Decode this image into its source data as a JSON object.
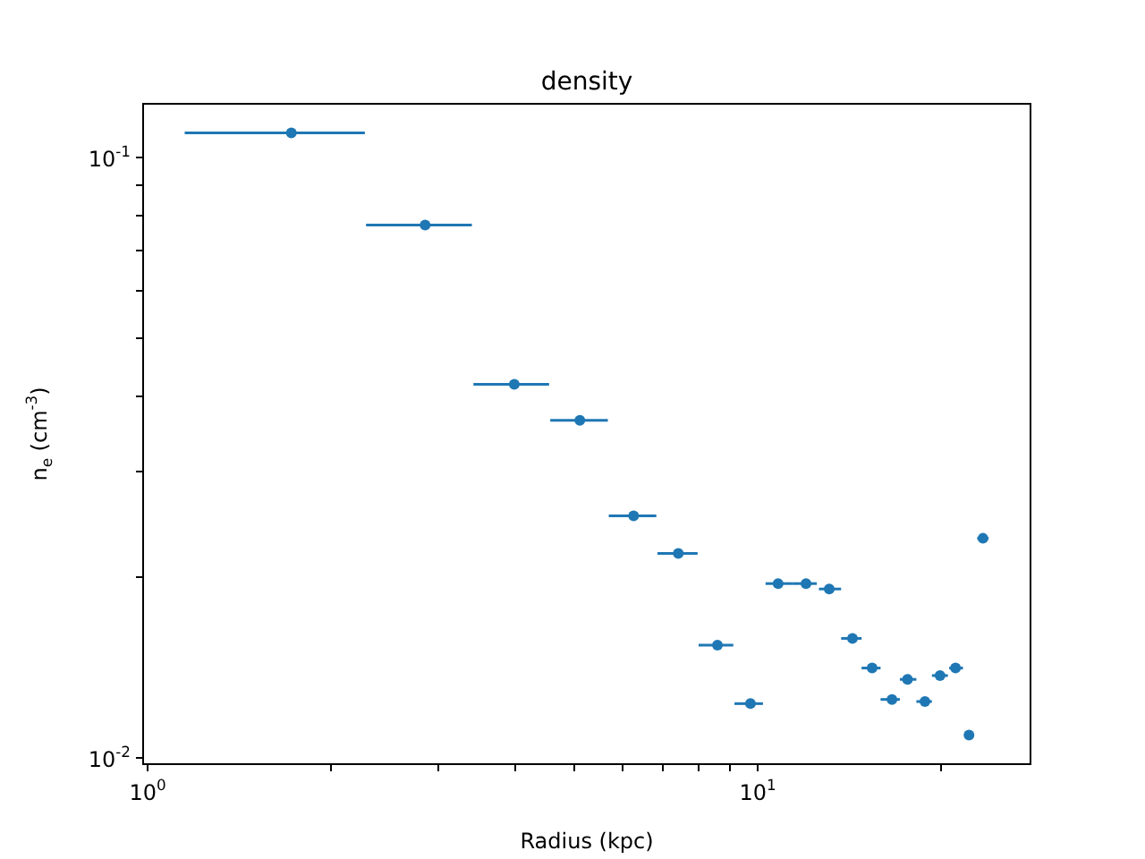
{
  "chart_data": {
    "type": "scatter",
    "title": "density",
    "xlabel": "Radius (kpc)",
    "ylabel": "n$_{e}$ (cm$^{-3}$)",
    "log": "xy",
    "grid": false,
    "legend": false,
    "marker": "circle",
    "xlim": [
      0.983,
      28
    ],
    "ylim": [
      0.00975,
      0.123
    ],
    "xticks": [
      {
        "value": 1,
        "label": "10$^{0}$"
      },
      {
        "value": 2,
        "label": null
      },
      {
        "value": 3,
        "label": null
      },
      {
        "value": 4,
        "label": null
      },
      {
        "value": 5,
        "label": null
      },
      {
        "value": 6,
        "label": null
      },
      {
        "value": 7,
        "label": null
      },
      {
        "value": 8,
        "label": null
      },
      {
        "value": 9,
        "label": null
      },
      {
        "value": 10,
        "label": "10$^{1}$"
      },
      {
        "value": 20,
        "label": null
      }
    ],
    "yticks": [
      {
        "value": 0.01,
        "label": "10$^{-2}$"
      },
      {
        "value": 0.02,
        "label": null
      },
      {
        "value": 0.03,
        "label": null
      },
      {
        "value": 0.04,
        "label": null
      },
      {
        "value": 0.05,
        "label": null
      },
      {
        "value": 0.06,
        "label": null
      },
      {
        "value": 0.07,
        "label": null
      },
      {
        "value": 0.08,
        "label": null
      },
      {
        "value": 0.09,
        "label": null
      },
      {
        "value": 0.1,
        "label": "10$^{-1}$"
      }
    ],
    "series": [
      {
        "color": "#1f77b4",
        "x": [
          1.72,
          2.85,
          3.99,
          5.11,
          6.26,
          7.41,
          8.59,
          9.73,
          10.8,
          12.0,
          13.1,
          14.3,
          15.4,
          16.6,
          17.6,
          18.8,
          19.9,
          21.1,
          22.2,
          23.4
        ],
        "values": [
          0.11,
          0.0772,
          0.0419,
          0.0365,
          0.0253,
          0.0219,
          0.0154,
          0.0123,
          0.0195,
          0.0195,
          0.0191,
          0.0158,
          0.0141,
          0.0125,
          0.0135,
          0.0124,
          0.0137,
          0.0141,
          0.0109,
          0.0232
        ],
        "xerrors": [
          [
            1.15,
            2.27
          ],
          [
            2.28,
            3.4
          ],
          [
            3.42,
            4.55
          ],
          [
            4.57,
            5.68
          ],
          [
            5.7,
            6.82
          ],
          [
            6.85,
            7.97
          ],
          [
            8.0,
            9.12
          ],
          [
            9.16,
            10.2
          ],
          [
            10.3,
            11.4
          ],
          [
            11.4,
            12.5
          ],
          [
            12.6,
            13.7
          ],
          [
            13.7,
            14.8
          ],
          [
            14.8,
            15.9
          ],
          [
            15.9,
            17.1
          ],
          [
            17.1,
            18.2
          ],
          [
            18.2,
            19.3
          ],
          [
            19.3,
            20.5
          ],
          [
            20.6,
            21.7
          ],
          [
            22.0,
            22.4
          ],
          [
            22.9,
            23.9
          ]
        ]
      }
    ]
  }
}
